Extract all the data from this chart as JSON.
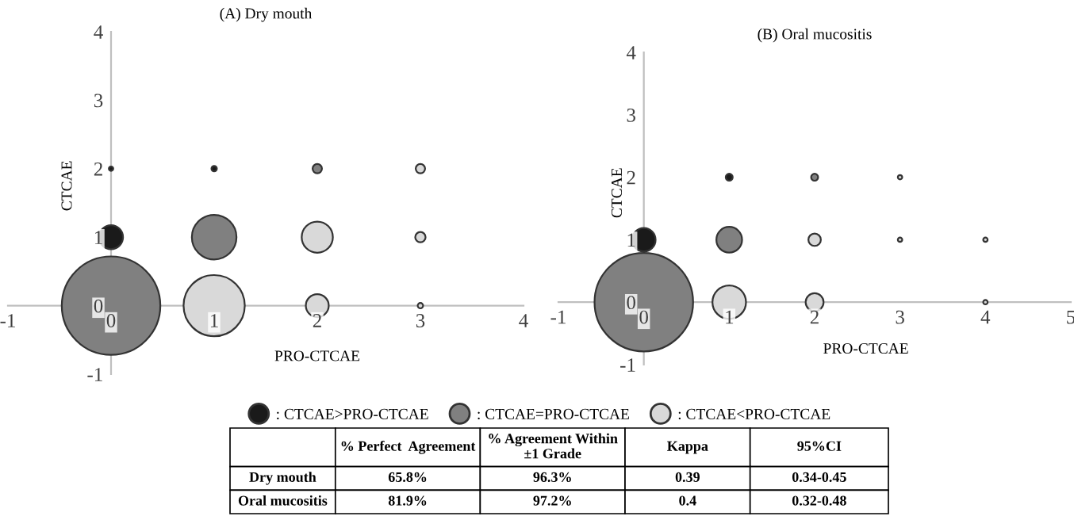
{
  "chart_data": [
    {
      "type": "bubble",
      "title": "(A) Dry mouth",
      "xlabel": "PRO-CTCAE",
      "ylabel": "CTCAE",
      "xlim": [
        -1,
        4
      ],
      "ylim": [
        -1,
        4
      ],
      "xticks": [
        -1,
        0,
        1,
        2,
        3,
        4
      ],
      "yticks": [
        -1,
        0,
        1,
        2,
        3,
        4
      ],
      "grid": false,
      "legend": "bottom",
      "relative": false,
      "series": [
        {
          "name": ": CTCAE>PRO-CTCAE",
          "color": "#1a1a1a",
          "x": [
            0,
            0,
            1
          ],
          "values": [
            1,
            2,
            2
          ],
          "sizes": [
            0.059,
            0.002,
            0.003
          ]
        },
        {
          "name": ": CTCAE=PRO-CTCAE",
          "color": "#808080",
          "x": [
            0,
            1,
            2
          ],
          "values": [
            0,
            1,
            2
          ],
          "sizes": [
            1,
            0.205,
            0.009
          ]
        },
        {
          "name": ": CTCAE<PRO-CTCAE",
          "color": "#d9d9d9",
          "x": [
            1,
            2,
            3,
            2,
            3,
            3
          ],
          "values": [
            0,
            0,
            0,
            1,
            1,
            2
          ],
          "sizes": [
            0.386,
            0.054,
            0.003,
            0.1,
            0.011,
            0.009
          ]
        }
      ]
    },
    {
      "type": "bubble",
      "title": "(B) Oral mucositis",
      "xlabel": "PRO-CTCAE",
      "ylabel": "CTCAE",
      "xlim": [
        -1,
        5
      ],
      "ylim": [
        -1,
        4
      ],
      "xticks": [
        -1,
        0,
        1,
        2,
        3,
        4,
        5
      ],
      "yticks": [
        -1,
        0,
        1,
        2,
        3,
        4
      ],
      "grid": false,
      "series": [
        {
          "color": "#1a1a1a",
          "x": [
            0,
            1
          ],
          "values": [
            1,
            2
          ],
          "sizes": [
            0.057,
            0.005
          ]
        },
        {
          "color": "#808080",
          "x": [
            0,
            1,
            2
          ],
          "values": [
            0,
            1,
            2
          ],
          "sizes": [
            1,
            0.068,
            0.005
          ]
        },
        {
          "color": "#d9d9d9",
          "x": [
            1,
            2,
            4,
            2,
            3,
            4,
            3
          ],
          "values": [
            0,
            0,
            0,
            1,
            1,
            1,
            2
          ],
          "sizes": [
            0.116,
            0.033,
            0.002,
            0.016,
            0.002,
            0.002,
            0.002
          ]
        }
      ]
    },
    {
      "type": "other",
      "categories": [
        null,
        "% Perfect  Agreement",
        "% Agreement Within\n±1 Grade",
        "Kappa",
        "95%CI"
      ],
      "y_categories": [
        "Dry mouth",
        "Oral mucositis"
      ],
      "cell_labels": [
        [
          "65.8%",
          "96.3%",
          "0.39",
          "0.34-0.45"
        ],
        [
          "81.9%",
          "97.2%",
          "0.4",
          "0.32-0.48"
        ]
      ]
    }
  ]
}
